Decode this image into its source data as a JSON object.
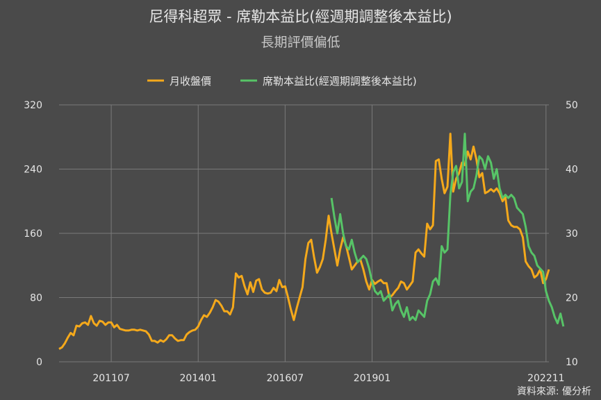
{
  "title": "尼得科超眾 - 席勒本益比(經週期調整後本益比)",
  "subtitle": "長期評價偏低",
  "source": "資料來源: 優分析",
  "colors": {
    "price": "#f5a91b",
    "cape": "#57c467",
    "background": "#4a4a4a",
    "grid": "#7a7a7a"
  },
  "chart_data": {
    "type": "line",
    "x_tick_labels": [
      "201107",
      "201401",
      "201607",
      "201901",
      "202211"
    ],
    "left_axis": {
      "ylim": [
        0,
        320
      ],
      "ticks": [
        "0",
        "80",
        "160",
        "240",
        "320"
      ]
    },
    "right_axis": {
      "ylim": [
        10,
        50
      ],
      "ticks": [
        "10",
        "20",
        "30",
        "40",
        "50"
      ]
    },
    "legend_position": "top-center",
    "grid": "major gridlines on both axes",
    "series": [
      {
        "name": "月收盤價",
        "axis": "left",
        "values": [
          16,
          18,
          23,
          30,
          36,
          33,
          45,
          44,
          48,
          49,
          46,
          57,
          48,
          45,
          51,
          50,
          46,
          49,
          49,
          43,
          46,
          41,
          40,
          39,
          39,
          40,
          40,
          39,
          40,
          39,
          38,
          34,
          26,
          26,
          24,
          27,
          25,
          28,
          33,
          33,
          29,
          26,
          27,
          27,
          34,
          37,
          39,
          40,
          44,
          52,
          58,
          56,
          61,
          68,
          77,
          75,
          70,
          63,
          63,
          59,
          68,
          110,
          105,
          107,
          94,
          84,
          99,
          87,
          101,
          103,
          90,
          86,
          85,
          86,
          92,
          88,
          102,
          93,
          94,
          80,
          65,
          52,
          67,
          80,
          93,
          128,
          148,
          152,
          130,
          111,
          118,
          128,
          152,
          182,
          160,
          140,
          120,
          140,
          155,
          145,
          130,
          115,
          120,
          125,
          127,
          115,
          100,
          90,
          102,
          97,
          100,
          102,
          98,
          98,
          80,
          83,
          88,
          92,
          100,
          98,
          90,
          95,
          100,
          136,
          140,
          135,
          131,
          172,
          165,
          170,
          250,
          252,
          228,
          210,
          218,
          284,
          212,
          228,
          235,
          248,
          245,
          262,
          252,
          268,
          252,
          230,
          235,
          210,
          212,
          215,
          212,
          216,
          210,
          200,
          205,
          176,
          170,
          168,
          168,
          165,
          155,
          125,
          119,
          115,
          105,
          108,
          115,
          98,
          103,
          115
        ]
      },
      {
        "name": "席勒本益比(經週期調整後本益比)",
        "axis": "right",
        "start_index": 94,
        "values": [
          35.5,
          32.5,
          30.0,
          33.0,
          30.0,
          28.0,
          27.5,
          29.0,
          27.0,
          25.5,
          26.0,
          26.5,
          26.0,
          24.5,
          22.5,
          21.0,
          20.5,
          21.0,
          19.5,
          20.0,
          20.5,
          18.0,
          19.0,
          19.5,
          18.0,
          17.0,
          18.5,
          16.5,
          17.0,
          16.5,
          18.0,
          17.5,
          17.0,
          19.5,
          20.5,
          22.5,
          23.0,
          22.0,
          28.0,
          27.0,
          27.5,
          36.0,
          39.5,
          40.5,
          37.0,
          38.0,
          45.5,
          35.0,
          36.5,
          37.0,
          39.0,
          42.0,
          41.5,
          40.0,
          42.0,
          41.0,
          38.5,
          40.0,
          37.0,
          35.5,
          36.0,
          35.5,
          36.0,
          35.5,
          34.0,
          33.5,
          33.0,
          31.0,
          28.0,
          27.0,
          26.5,
          25.0,
          24.5,
          24.0,
          21.0,
          19.5,
          18.5,
          17.0,
          16.0,
          17.5,
          15.5
        ]
      }
    ]
  }
}
